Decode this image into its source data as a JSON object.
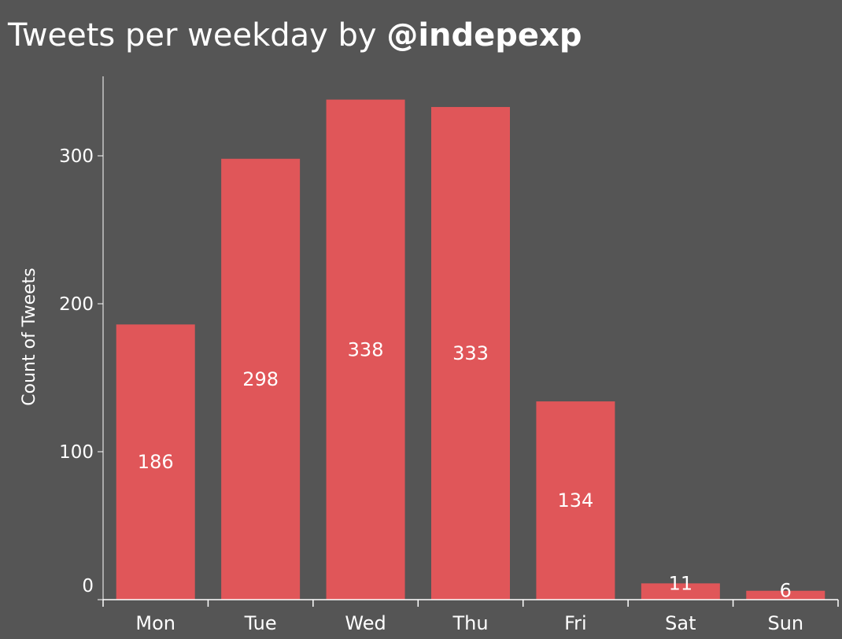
{
  "title": {
    "prefix": "Tweets per weekday by",
    "handle": "@indepexp"
  },
  "colors": {
    "background": "#555555",
    "bar": "#e05659",
    "text": "#ffffff",
    "axis": "#ffffff"
  },
  "chart_data": {
    "type": "bar",
    "title": "Tweets per weekday by @indepexp",
    "categories": [
      "Mon",
      "Tue",
      "Wed",
      "Thu",
      "Fri",
      "Sat",
      "Sun"
    ],
    "values": [
      186,
      298,
      338,
      333,
      134,
      11,
      6
    ],
    "data_labels": [
      "186",
      "298",
      "338",
      "333",
      "134",
      "11",
      "6"
    ],
    "xlabel": "",
    "ylabel": "Count of Tweets",
    "ylim": [
      0,
      355
    ],
    "yticks": [
      0,
      100,
      200,
      300
    ],
    "ytick_labels": [
      "0",
      "100",
      "200",
      "300"
    ],
    "grid": false,
    "legend": "none"
  }
}
